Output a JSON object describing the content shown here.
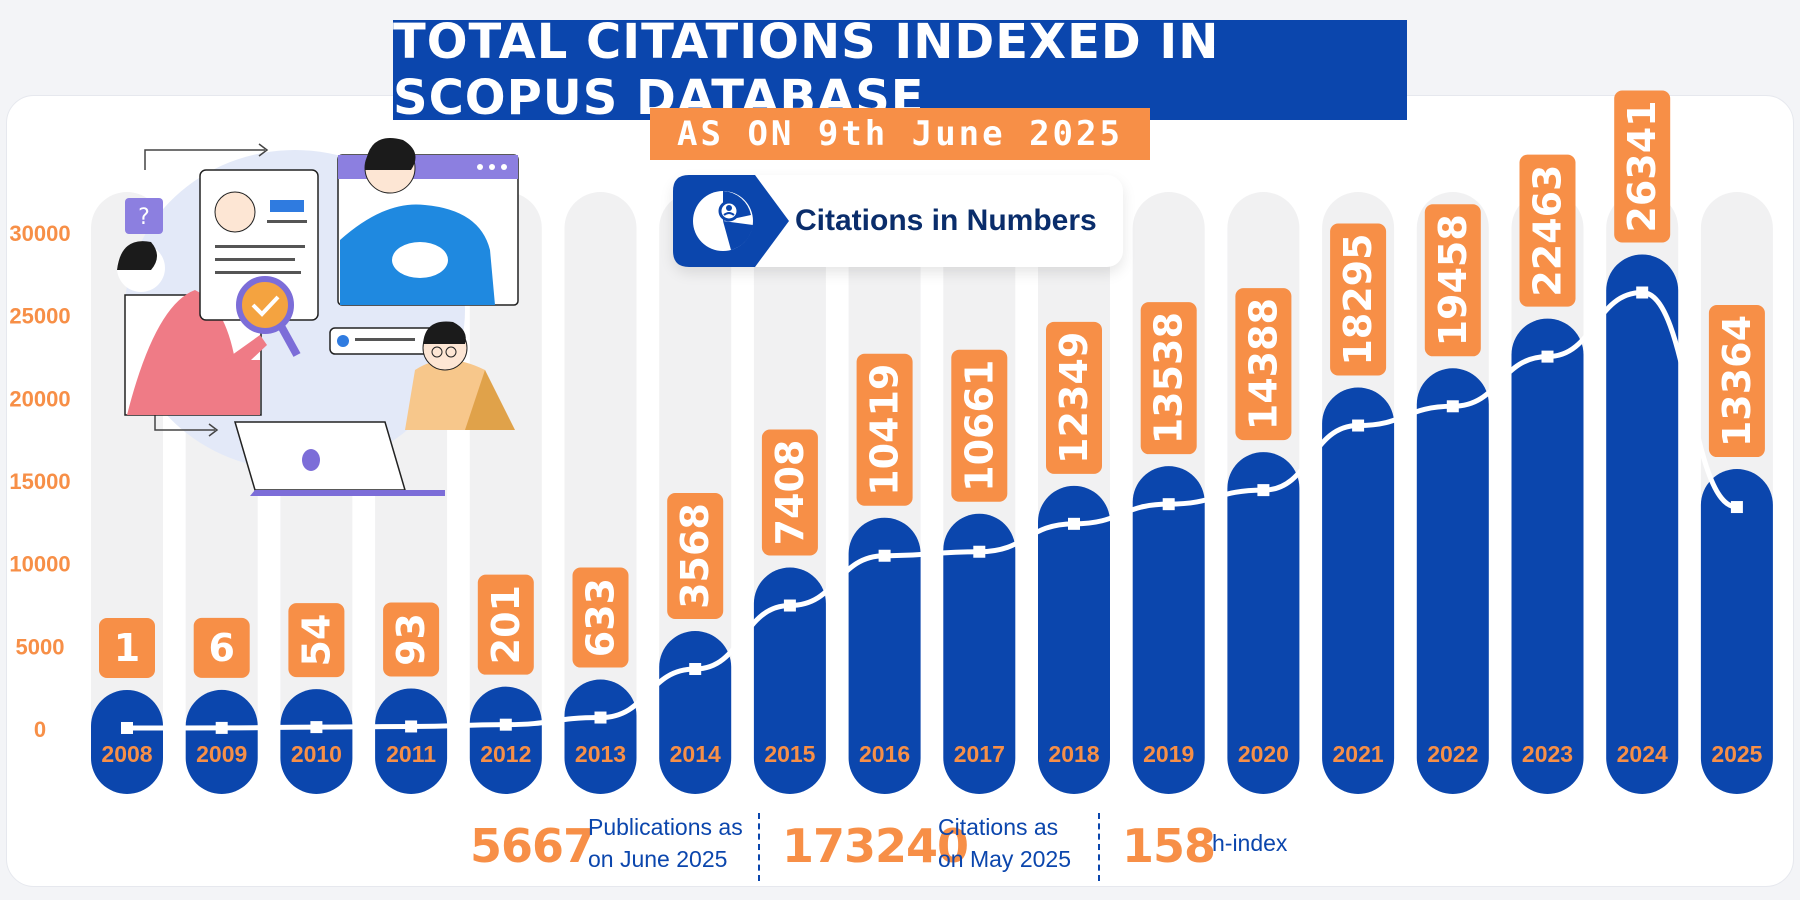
{
  "header": {
    "title": "TOTAL CITATIONS INDEXED IN SCOPUS DATABASE",
    "subtitle": "AS ON 9th June 2025"
  },
  "badge": {
    "label": "Citations in Numbers",
    "icon": "pie-chart-user-icon"
  },
  "illustration": {
    "icon": "research-team-illustration"
  },
  "chart_data": {
    "type": "bar",
    "title": "TOTAL CITATIONS INDEXED IN SCOPUS DATABASE",
    "subtitle": "AS ON 9th June 2025",
    "xlabel": "",
    "ylabel": "",
    "categories": [
      "2008",
      "2009",
      "2010",
      "2011",
      "2012",
      "2013",
      "2014",
      "2015",
      "2016",
      "2017",
      "2018",
      "2019",
      "2020",
      "2021",
      "2022",
      "2023",
      "2024",
      "2025"
    ],
    "values": [
      1,
      6,
      54,
      93,
      201,
      633,
      3568,
      7408,
      10419,
      10661,
      12349,
      13538,
      14388,
      18295,
      19458,
      22463,
      26341,
      13364
    ],
    "yticks": [
      0,
      5000,
      10000,
      15000,
      20000,
      25000,
      30000
    ],
    "ylim": [
      0,
      30000
    ],
    "overlay": "line",
    "grid": false,
    "legend": "none"
  },
  "stats": [
    {
      "number": "5667",
      "label_line1": "Publications as",
      "label_line2": "on June 2025"
    },
    {
      "number": "173240",
      "label_line1": "Citations as",
      "label_line2": "on May 2025"
    },
    {
      "number": "158",
      "label_line1": "h-index",
      "label_line2": ""
    }
  ],
  "colors": {
    "bar": "#0b46ad",
    "label": "#f78f47",
    "track": "#f1f1f2",
    "line": "#ffffff",
    "axis_text": "#f78f47",
    "title_bg": "#0b46ad",
    "subtitle_bg": "#f78f47"
  }
}
